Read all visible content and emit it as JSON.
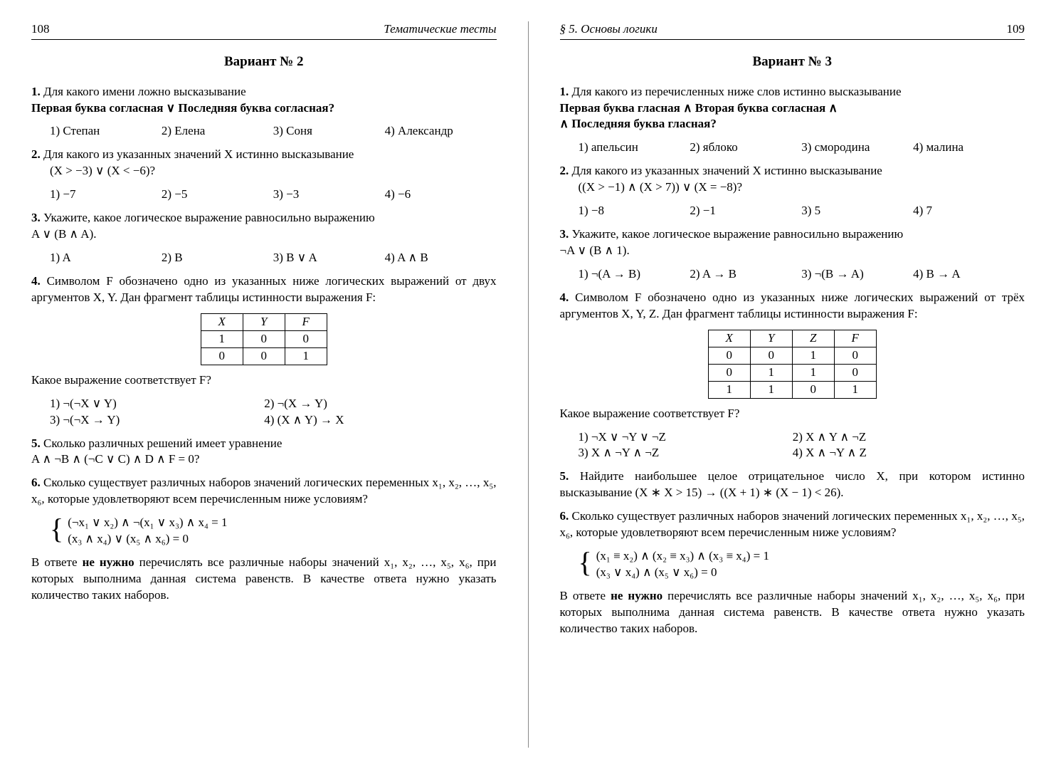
{
  "left": {
    "pageno": "108",
    "runtitle": "Тематические тесты",
    "variant": "Вариант № 2",
    "q1": {
      "num": "1.",
      "text": "Для какого имени ложно высказывание",
      "formula": "Первая буква согласная ∨ Последняя буква согласная?",
      "opts": [
        "1) Степан",
        "2) Елена",
        "3) Соня",
        "4) Александр"
      ]
    },
    "q2": {
      "num": "2.",
      "text": "Для какого из указанных значений X истинно высказывание",
      "formula": "(X > −3) ∨ (X < −6)?",
      "opts": [
        "1) −7",
        "2) −5",
        "3) −3",
        "4) −6"
      ]
    },
    "q3": {
      "num": "3.",
      "text": "Укажите, какое логическое выражение равносильно выражению",
      "formula": "A ∨ (B ∧ A).",
      "opts": [
        "1) A",
        "2) B",
        "3) B ∨ A",
        "4) A ∧ B"
      ]
    },
    "q4": {
      "num": "4.",
      "text_a": "Символом F обозначено одно из указанных ниже логических выражений от двух аргументов X, Y. Дан фрагмент таблицы истинности выражения F:",
      "table": {
        "head": [
          "X",
          "Y",
          "F"
        ],
        "rows": [
          [
            "1",
            "0",
            "0"
          ],
          [
            "0",
            "0",
            "1"
          ]
        ]
      },
      "text_b": "Какое выражение соответствует F?",
      "opts": [
        "1) ¬(¬X ∨ Y)",
        "2) ¬(X → Y)",
        "3) ¬(¬X → Y)",
        "4) (X ∧ Y) → X"
      ]
    },
    "q5": {
      "num": "5.",
      "text": "Сколько различных решений имеет уравнение",
      "formula": "A ∧ ¬B ∧ (¬C ∨ C) ∧ D ∧ F = 0?"
    },
    "q6": {
      "num": "6.",
      "text": "Сколько существует различных наборов значений логических переменных x₁, x₂, …, x₅, x₆, которые удовлетворяют всем перечисленным ниже условиям?",
      "sys": [
        "(¬x₁ ∨ x₂) ∧ ¬(x₁ ∨ x₃) ∧ x₄ = 1",
        "(x₃ ∧ x₄) ∨ (x₅ ∧ x₆) = 0"
      ],
      "note_a": "В ответе ",
      "note_b": "не нужно",
      "note_c": " перечислять все различные наборы значений x₁, x₂, …, x₅, x₆, при которых выполнима данная система равенств. В качестве ответа нужно указать количество таких наборов."
    }
  },
  "right": {
    "pageno": "109",
    "runtitle": "§ 5.  Основы логики",
    "variant": "Вариант № 3",
    "q1": {
      "num": "1.",
      "text": "Для какого из перечисленных ниже слов истинно высказывание",
      "formula": "Первая буква гласная ∧ Вторая буква согласная ∧",
      "formula2": "∧ Последняя буква гласная?",
      "opts": [
        "1) апельсин",
        "2) яблоко",
        "3) смородина",
        "4) малина"
      ]
    },
    "q2": {
      "num": "2.",
      "text": "Для какого из указанных значений X истинно высказывание",
      "formula": "((X > −1) ∧ (X > 7)) ∨ (X = −8)?",
      "opts": [
        "1) −8",
        "2) −1",
        "3) 5",
        "4) 7"
      ]
    },
    "q3": {
      "num": "3.",
      "text": "Укажите, какое логическое выражение равносильно выражению",
      "formula": "¬A ∨ (B ∧ 1).",
      "opts": [
        "1) ¬(A → B)",
        "2) A → B",
        "3) ¬(B → A)",
        "4) B → A"
      ]
    },
    "q4": {
      "num": "4.",
      "text_a": "Символом F обозначено одно из указанных ниже логических выражений от трёх аргументов X, Y, Z. Дан фрагмент таблицы истинности выражения F:",
      "table": {
        "head": [
          "X",
          "Y",
          "Z",
          "F"
        ],
        "rows": [
          [
            "0",
            "0",
            "1",
            "0"
          ],
          [
            "0",
            "1",
            "1",
            "0"
          ],
          [
            "1",
            "1",
            "0",
            "1"
          ]
        ]
      },
      "text_b": "Какое выражение соответствует F?",
      "opts": [
        "1) ¬X ∨ ¬Y ∨ ¬Z",
        "2) X ∧ Y ∧ ¬Z",
        "3) X ∧ ¬Y ∧ ¬Z",
        "4) X ∧ ¬Y ∧ Z"
      ]
    },
    "q5": {
      "num": "5.",
      "text": "Найдите наибольшее целое отрицательное число X, при котором истинно высказывание  (X ∗ X > 15) → ((X + 1) ∗ (X − 1) < 26)."
    },
    "q6": {
      "num": "6.",
      "text": "Сколько существует различных наборов значений логических переменных x₁, x₂, …, x₅, x₆, которые удовлетворяют всем перечисленным ниже условиям?",
      "sys": [
        "(x₁ ≡ x₂) ∧ (x₂ ≡ x₃) ∧ (x₃ ≡ x₄) = 1",
        "(x₃ ∨ x₄) ∧ (x₅ ∨ x₆) = 0"
      ],
      "note_a": "В ответе ",
      "note_b": "не нужно",
      "note_c": " перечислять все различные наборы значений x₁, x₂, …, x₅, x₆, при которых выполнима данная система равенств. В качестве ответа нужно указать количество таких наборов."
    }
  }
}
